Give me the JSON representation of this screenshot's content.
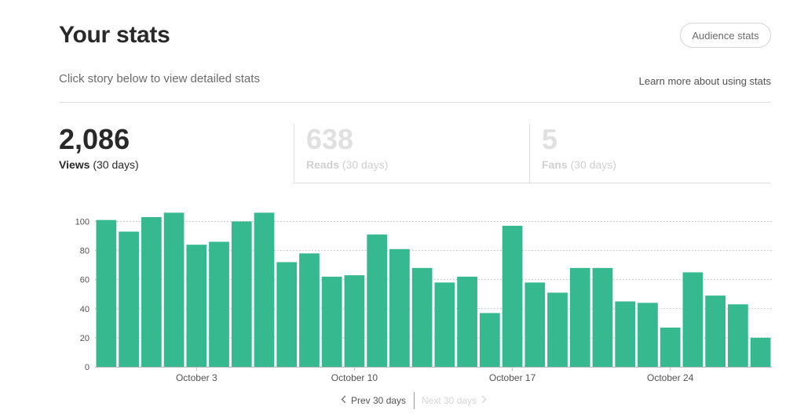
{
  "header": {
    "title": "Your stats",
    "audience_button": "Audience stats",
    "subtitle": "Click story below to view detailed stats",
    "learn_link": "Learn more about using stats"
  },
  "tabs": [
    {
      "value": "2,086",
      "label": "Views",
      "period": "(30 days)",
      "active": true
    },
    {
      "value": "638",
      "label": "Reads",
      "period": "(30 days)",
      "active": false
    },
    {
      "value": "5",
      "label": "Fans",
      "period": "(30 days)",
      "active": false
    }
  ],
  "pager": {
    "prev_label": "Prev 30 days",
    "next_label": "Next 30 days",
    "prev_icon": "chevron-left-icon",
    "next_icon": "chevron-right-icon"
  },
  "colors": {
    "bar": "#37b98f",
    "grid": "#b8b8b8",
    "text": "#292929",
    "muted": "#6b6b6b"
  },
  "chart_data": {
    "type": "bar",
    "title": "",
    "xlabel": "",
    "ylabel": "",
    "ylim": [
      0,
      110
    ],
    "y_ticks": [
      0,
      20,
      40,
      60,
      80,
      100
    ],
    "grid": true,
    "x_tick_labels": [
      {
        "index": 4,
        "label": "October 3"
      },
      {
        "index": 11,
        "label": "October 10"
      },
      {
        "index": 18,
        "label": "October 17"
      },
      {
        "index": 25,
        "label": "October 24"
      }
    ],
    "values": [
      101,
      93,
      103,
      106,
      84,
      86,
      100,
      106,
      72,
      78,
      62,
      63,
      91,
      81,
      68,
      58,
      62,
      37,
      97,
      58,
      51,
      68,
      68,
      45,
      44,
      27,
      65,
      49,
      43,
      20
    ]
  }
}
